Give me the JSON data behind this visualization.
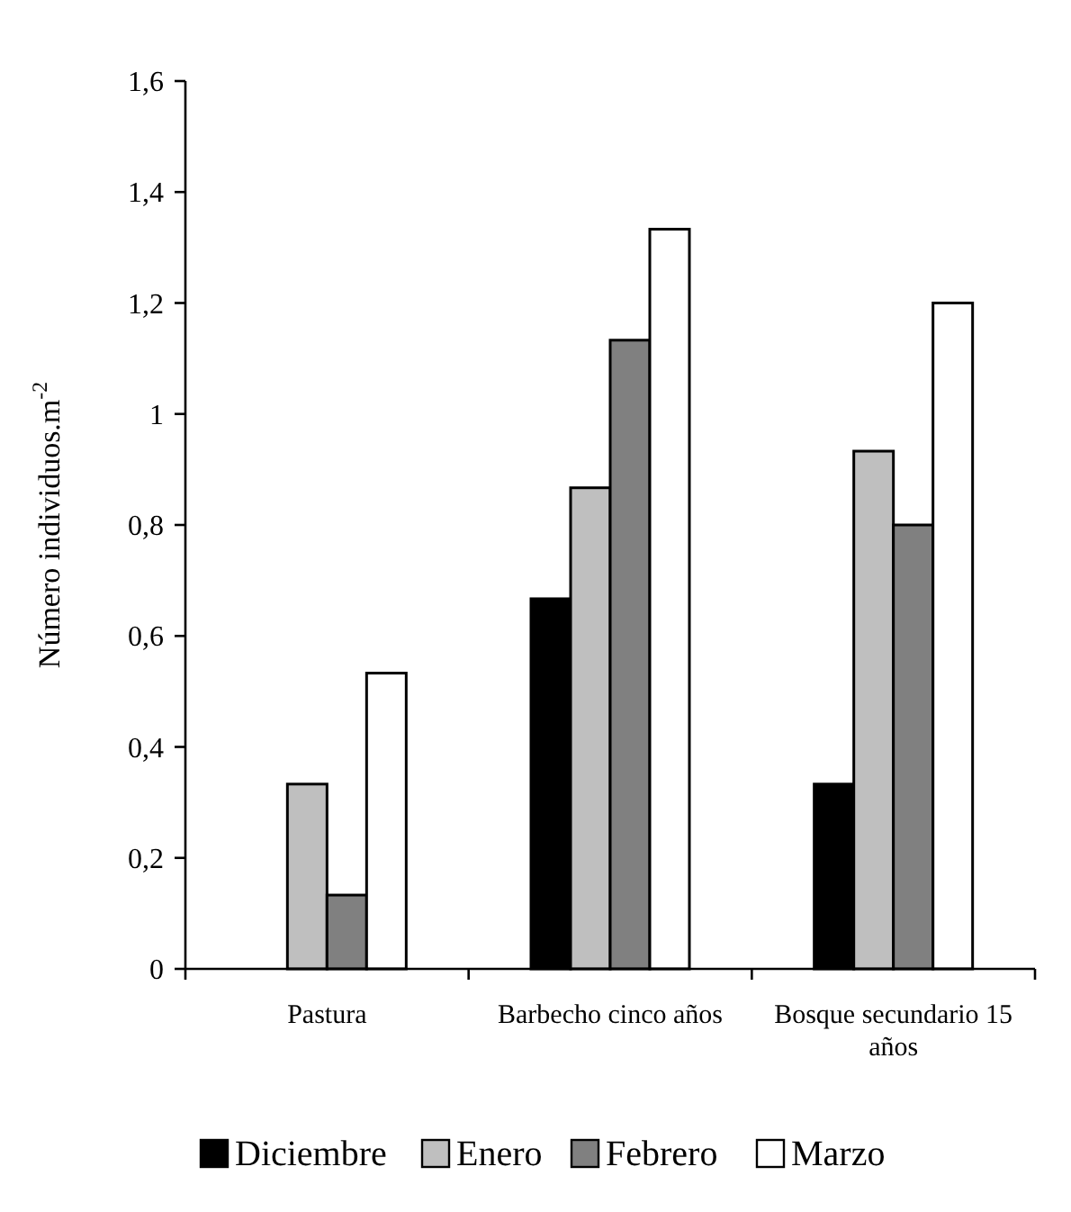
{
  "chart_data": {
    "type": "bar",
    "ylabel": "Número individuos.m$^{-2}$",
    "categories": [
      "Pastura",
      "Barbecho cinco años",
      "Bosque secundario 15 años"
    ],
    "series": [
      {
        "name": "Diciembre",
        "color": "#000000",
        "values": [
          0,
          0.667,
          0.333
        ]
      },
      {
        "name": "Enero",
        "color": "#bfbfbf",
        "values": [
          0.333,
          0.867,
          0.933
        ]
      },
      {
        "name": "Febrero",
        "color": "#808080",
        "values": [
          0.133,
          1.133,
          0.8
        ]
      },
      {
        "name": "Marzo",
        "color": "#ffffff",
        "values": [
          0.533,
          1.333,
          1.2
        ]
      }
    ],
    "ylim": [
      0,
      1.6
    ],
    "yticks": [
      0,
      {
        "value": 0.2,
        "label": "0,2"
      },
      {
        "value": 0.4,
        "label": "0,4"
      },
      {
        "value": 0.6,
        "label": "0,6"
      },
      {
        "value": 0.8,
        "label": "0,8"
      },
      1,
      {
        "value": 1.2,
        "label": "1,2"
      },
      {
        "value": 1.4,
        "label": "1,4"
      },
      {
        "value": 1.6,
        "label": "1,6"
      }
    ],
    "grid": false,
    "legend": "bottom"
  }
}
